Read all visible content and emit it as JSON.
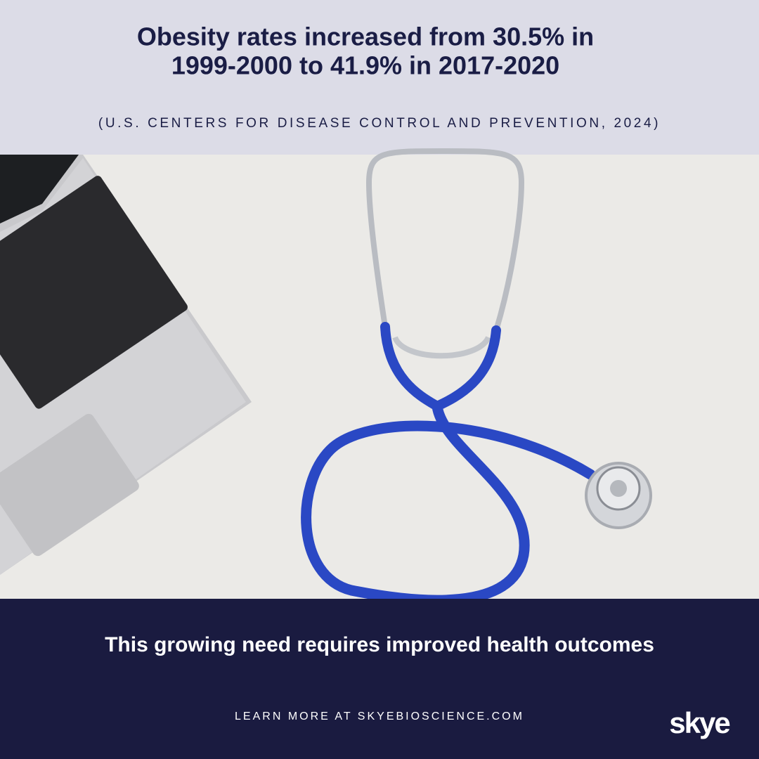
{
  "header": {
    "headline": [
      "Obesity rates increased from 30.5% in",
      "1999-2000 to 41.9% in 2017-2020"
    ],
    "source": "(U.S. CENTERS FOR DISEASE CONTROL AND PREVENTION, 2024)"
  },
  "footer": {
    "tagline": "This growing need requires improved health outcomes",
    "cta": "LEARN MORE AT SKYEBIOSCIENCE.COM",
    "logo": "skye"
  }
}
